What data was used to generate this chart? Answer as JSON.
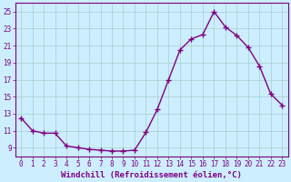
{
  "x": [
    0,
    1,
    2,
    3,
    4,
    5,
    6,
    7,
    8,
    9,
    10,
    11,
    12,
    13,
    14,
    15,
    16,
    17,
    18,
    19,
    20,
    21,
    22,
    23
  ],
  "y": [
    12.5,
    11.0,
    10.7,
    10.7,
    9.2,
    9.0,
    8.8,
    8.7,
    8.6,
    8.6,
    8.7,
    10.8,
    13.5,
    17.0,
    20.5,
    21.8,
    22.3,
    25.0,
    23.2,
    22.2,
    20.8,
    18.6,
    15.3,
    14.0
  ],
  "line_color": "#800080",
  "marker": "+",
  "marker_size": 4,
  "marker_lw": 1.0,
  "line_width": 1.0,
  "bg_color": "#cceeff",
  "grid_color": "#aacccc",
  "ylim": [
    8.0,
    26.0
  ],
  "xlim_min": -0.5,
  "xlim_max": 23.5,
  "yticks": [
    9,
    11,
    13,
    15,
    17,
    19,
    21,
    23,
    25
  ],
  "xticks": [
    0,
    1,
    2,
    3,
    4,
    5,
    6,
    7,
    8,
    9,
    10,
    11,
    12,
    13,
    14,
    15,
    16,
    17,
    18,
    19,
    20,
    21,
    22,
    23
  ],
  "tick_color": "#800080",
  "label_color": "#800080",
  "spine_color": "#800080",
  "tick_fontsize": 5.5,
  "xlabel": "Windchill (Refroidissement éolien,°C)",
  "xlabel_fontsize": 6.5,
  "xlabel_fontweight": "bold"
}
